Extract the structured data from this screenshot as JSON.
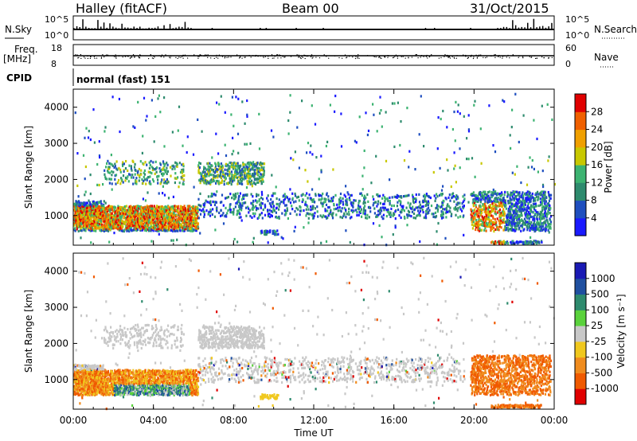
{
  "header": {
    "station": "Halley (fitACF)",
    "beam": "Beam 00",
    "date": "31/Oct/2015"
  },
  "sidepanel": {
    "nsky_label": "N.Sky",
    "nsky_ticks": [
      "10^5",
      "10^0"
    ],
    "nsearch_label": "N.Search",
    "nsearch_ticks": [
      "10^5",
      "10^0"
    ],
    "freq_label": "Freq.",
    "freq_unit": "[MHz]",
    "freq_ticks": [
      "18",
      "8"
    ],
    "nave_label": "Nave",
    "nave_ticks": [
      "60",
      "0"
    ],
    "cpid_label": "CPID",
    "cpid_text": "normal (fast) 151"
  },
  "chart_data": [
    {
      "type": "heatmap",
      "name": "power",
      "ylabel": "Slant Range [km]",
      "yticks": [
        "1000",
        "2000",
        "3000",
        "4000"
      ],
      "ylim": [
        180,
        4500
      ],
      "colorbar_label": "Power [dB]",
      "colorbar_ticks": [
        "4",
        "8",
        "12",
        "16",
        "20",
        "24",
        "28"
      ],
      "colorbar_colors": [
        "#1a1aff",
        "#1f4fbf",
        "#2e8b6e",
        "#3cb371",
        "#c8c800",
        "#f0a000",
        "#f06000",
        "#e00000"
      ],
      "vmin": 0,
      "vmax": 32
    },
    {
      "type": "heatmap",
      "name": "velocity",
      "ylabel": "Slant Range [km]",
      "yticks": [
        "1000",
        "2000",
        "3000",
        "4000"
      ],
      "ylim": [
        180,
        4500
      ],
      "colorbar_label": "Velocity [m s⁻¹]",
      "colorbar_ticks": [
        "1000",
        "500",
        "100",
        "25",
        "-25",
        "-100",
        "-500",
        "-1000"
      ],
      "colorbar_colors": [
        "#e00000",
        "#f05a00",
        "#f08c1e",
        "#f0c81e",
        "#c8c8c8",
        "#5ad23c",
        "#2e8b6e",
        "#2050a0",
        "#1a1ab4"
      ],
      "vmin": -1200,
      "vmax": 1200
    }
  ],
  "xaxis": {
    "ticks": [
      "00:00",
      "04:00",
      "08:00",
      "12:00",
      "16:00",
      "20:00",
      "00:00"
    ],
    "label": "Time UT"
  }
}
